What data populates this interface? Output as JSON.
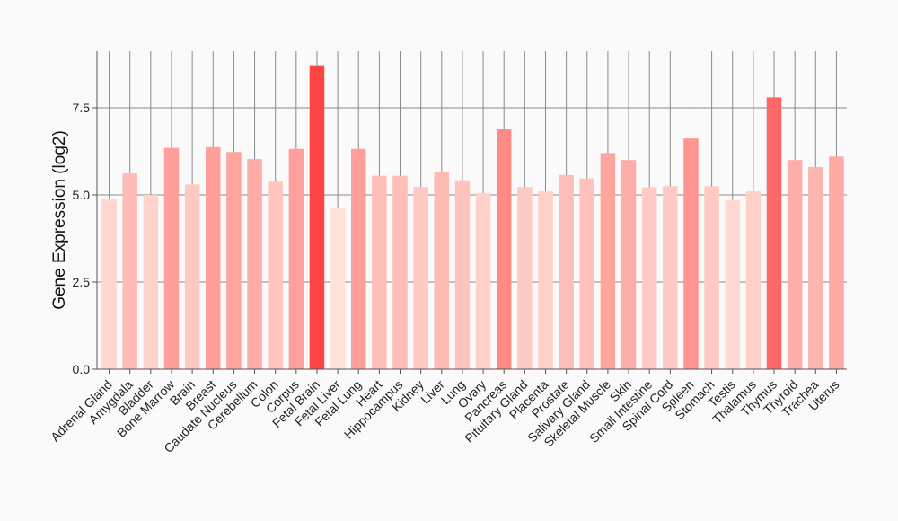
{
  "chart_data": {
    "type": "bar",
    "ylabel": "Gene Expression (log2)",
    "xlabel": "",
    "title": "",
    "ylim": [
      0,
      9.15
    ],
    "yticks": [
      0.0,
      2.5,
      5.0,
      7.5
    ],
    "ytick_labels": [
      "0.0",
      "2.5",
      "5.0",
      "7.5"
    ],
    "grid": true,
    "color_low": "#ffe2da",
    "color_high": "#ff4444",
    "categories": [
      "Adrenal Gland",
      "Amygdala",
      "Bladder",
      "Bone Marrow",
      "Brain",
      "Breast",
      "Caudate Nucleus",
      "Cerebellum",
      "Colon",
      "Corpus",
      "Fetal Brain",
      "Fetal Liver",
      "Fetal Lung",
      "Heart",
      "Hippocampus",
      "Kidney",
      "Liver",
      "Lung",
      "Ovary",
      "Pancreas",
      "Pituitary Gland",
      "Placenta",
      "Prostate",
      "Salivary Gland",
      "Skeletal Muscle",
      "Skin",
      "Small Intestine",
      "Spinal Cord",
      "Spleen",
      "Stomach",
      "Testis",
      "Thalamus",
      "Thymus",
      "Thyroid",
      "Trachea",
      "Uterus"
    ],
    "values": [
      4.9,
      5.62,
      5.0,
      6.35,
      5.3,
      6.37,
      6.23,
      6.03,
      5.38,
      6.32,
      8.72,
      4.62,
      6.32,
      5.55,
      5.55,
      5.23,
      5.65,
      5.42,
      5.05,
      6.88,
      5.23,
      5.1,
      5.57,
      5.47,
      6.2,
      6.0,
      5.22,
      5.25,
      6.62,
      5.25,
      4.85,
      5.1,
      7.8,
      6.0,
      5.8,
      6.1
    ]
  }
}
